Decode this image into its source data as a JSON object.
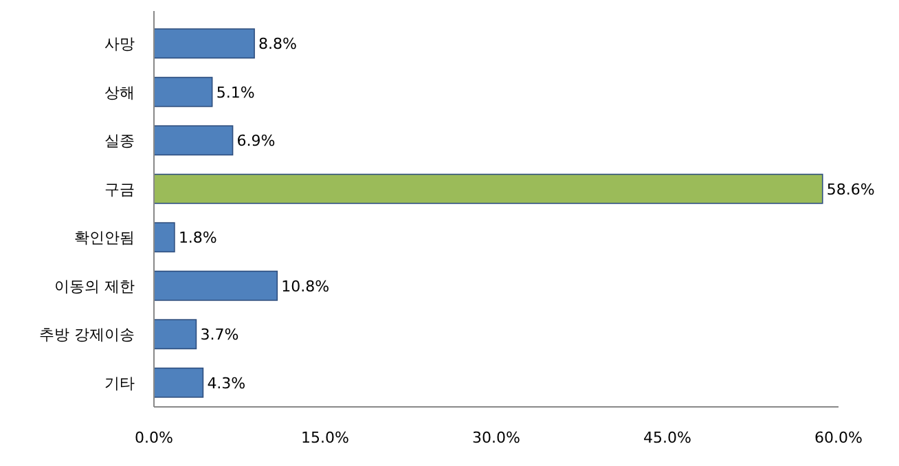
{
  "chart_data": {
    "type": "bar",
    "orientation": "horizontal",
    "categories": [
      "사망",
      "상해",
      "실종",
      "구금",
      "확인안됨",
      "이동의 제한",
      "추방 강제이송",
      "기타"
    ],
    "values": [
      8.8,
      5.1,
      6.9,
      58.6,
      1.8,
      10.8,
      3.7,
      4.3
    ],
    "colors": [
      "#4f81bd",
      "#4f81bd",
      "#4f81bd",
      "#9bbb59",
      "#4f81bd",
      "#4f81bd",
      "#4f81bd",
      "#4f81bd"
    ],
    "value_labels": [
      "8.8%",
      "5.1%",
      "6.9%",
      "58.6%",
      "1.8%",
      "10.8%",
      "3.7%",
      "4.3%"
    ],
    "xlim": [
      0,
      60
    ],
    "xticks": [
      {
        "value": 0,
        "label": "0.0%"
      },
      {
        "value": 15,
        "label": "15.0%"
      },
      {
        "value": 30,
        "label": "30.0%"
      },
      {
        "value": 45,
        "label": "45.0%"
      },
      {
        "value": 60,
        "label": "60.0%"
      }
    ]
  }
}
